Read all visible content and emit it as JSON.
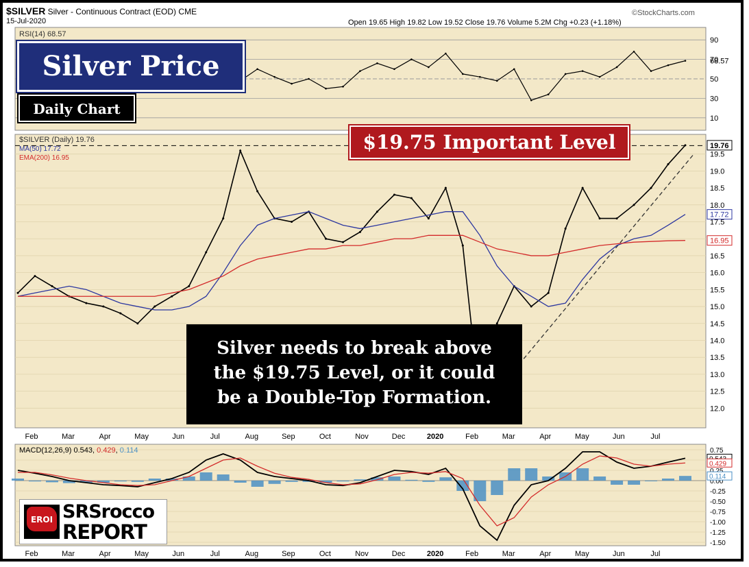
{
  "header": {
    "symbol": "$SILVER",
    "description": "Silver - Continuous Contract (EOD)",
    "exchange": "CME",
    "date": "15-Jul-2020",
    "watermark": "©StockCharts.com",
    "quote": "Open 19.65  High 19.82  Low 19.52  Close 19.76  Volume 5.2M  Chg +0.23 (+1.18%)"
  },
  "callouts": {
    "title": "Silver Price",
    "subtitle": "Daily Chart",
    "level": "$19.75 Important Level",
    "note_lines": [
      "Silver needs to break above",
      "the $19.75 Level, or it could",
      "be a Double-Top Formation."
    ]
  },
  "logo": {
    "badge": "EROI",
    "line1": "SRSrocco",
    "line2": "REPORT"
  },
  "colors": {
    "price": "#000000",
    "ma50": "#2c37a0",
    "ema200": "#d32a2a",
    "rsi_overbought": "#4f7d2f",
    "rsi_oversold": "#9b3a2a",
    "macd_hist": "#4a8fc4",
    "panel_bg": "#f3e8c8",
    "callout_red": "#b0191e",
    "callout_blue": "#1f2e7a"
  },
  "chart_data": [
    {
      "type": "line",
      "panel": "rsi",
      "legend": "RSI(14) 68.57",
      "ticks": [
        90,
        70,
        50,
        30,
        10
      ],
      "last_value_label": "68.57",
      "ylim": [
        0,
        100
      ],
      "x": [
        0,
        10,
        20,
        30,
        40,
        50,
        60,
        70,
        80,
        90,
        100,
        110,
        120,
        130,
        140,
        150,
        160,
        170,
        180,
        190,
        200,
        210,
        220,
        230,
        240,
        250,
        260,
        270,
        280,
        290,
        300,
        310,
        320,
        330,
        340,
        350,
        360,
        370,
        380,
        390
      ],
      "values": [
        50,
        58,
        47,
        52,
        42,
        48,
        38,
        55,
        62,
        60,
        75,
        80,
        55,
        48,
        60,
        52,
        45,
        50,
        40,
        42,
        58,
        66,
        60,
        70,
        62,
        76,
        55,
        52,
        48,
        60,
        28,
        34,
        55,
        58,
        52,
        62,
        78,
        58,
        64,
        68.57
      ]
    },
    {
      "type": "line",
      "panel": "price",
      "legend": [
        "$SILVER (Daily) 19.76",
        "MA(50) 17.72",
        "EMA(200) 16.95"
      ],
      "ylim": [
        11.5,
        20.0
      ],
      "ticks": [
        19.5,
        19.0,
        18.5,
        18.0,
        17.5,
        17.0,
        16.5,
        16.0,
        15.5,
        15.0,
        14.5,
        14.0,
        13.5,
        13.0,
        12.5,
        12.0
      ],
      "value_labels": {
        "close": "19.76",
        "ma50": "17.72",
        "ema200": "16.95"
      },
      "x_labels": [
        "Feb",
        "Mar",
        "Apr",
        "May",
        "Jun",
        "Jul",
        "Aug",
        "Sep",
        "Oct",
        "Nov",
        "Dec",
        "2020",
        "Feb",
        "Mar",
        "Apr",
        "May",
        "Jun",
        "Jul"
      ],
      "important_level": 19.75,
      "x": [
        0,
        10,
        20,
        30,
        40,
        50,
        60,
        70,
        80,
        90,
        100,
        110,
        120,
        130,
        140,
        150,
        160,
        170,
        180,
        190,
        200,
        210,
        220,
        230,
        240,
        250,
        260,
        270,
        280,
        290,
        300,
        310,
        320,
        330,
        340,
        350,
        360,
        370,
        380,
        390
      ],
      "series": [
        {
          "name": "$SILVER (Daily)",
          "values": [
            15.4,
            15.9,
            15.6,
            15.3,
            15.1,
            15.0,
            14.8,
            14.5,
            15.0,
            15.3,
            15.6,
            16.6,
            17.6,
            19.6,
            18.4,
            17.6,
            17.5,
            17.8,
            17.0,
            16.9,
            17.2,
            17.8,
            18.3,
            18.2,
            17.6,
            18.5,
            16.8,
            12.1,
            14.5,
            15.6,
            15.0,
            15.4,
            17.3,
            18.5,
            17.6,
            17.6,
            18.0,
            18.5,
            19.2,
            19.76
          ]
        },
        {
          "name": "MA(50)",
          "values": [
            15.3,
            15.4,
            15.5,
            15.6,
            15.5,
            15.3,
            15.1,
            15.0,
            14.9,
            14.9,
            15.0,
            15.3,
            16.0,
            16.8,
            17.4,
            17.6,
            17.7,
            17.8,
            17.6,
            17.4,
            17.3,
            17.4,
            17.5,
            17.6,
            17.7,
            17.8,
            17.8,
            17.1,
            16.2,
            15.6,
            15.3,
            15.0,
            15.1,
            15.8,
            16.4,
            16.8,
            17.0,
            17.1,
            17.4,
            17.72
          ]
        },
        {
          "name": "EMA(200)",
          "values": [
            15.3,
            15.3,
            15.3,
            15.3,
            15.3,
            15.3,
            15.3,
            15.3,
            15.3,
            15.4,
            15.5,
            15.7,
            15.9,
            16.2,
            16.4,
            16.5,
            16.6,
            16.7,
            16.7,
            16.8,
            16.8,
            16.9,
            17.0,
            17.0,
            17.1,
            17.1,
            17.1,
            16.9,
            16.7,
            16.6,
            16.5,
            16.5,
            16.6,
            16.7,
            16.8,
            16.85,
            16.9,
            16.92,
            16.94,
            16.95
          ]
        }
      ]
    },
    {
      "type": "line",
      "panel": "macd",
      "legend": [
        "MACD(12,26,9)",
        "0.543",
        "0.429",
        "0.114"
      ],
      "ylim": [
        -1.55,
        0.85
      ],
      "ticks": [
        "0.75",
        "0.50",
        "0.25",
        "0.00",
        "-0.25",
        "-0.50",
        "-0.75",
        "-1.00",
        "-1.25",
        "-1.50"
      ],
      "value_labels": {
        "macd": "0.543",
        "signal": "0.429",
        "histogram": "0.114"
      },
      "x_labels": [
        "Feb",
        "Mar",
        "Apr",
        "May",
        "Jun",
        "Jul",
        "Aug",
        "Sep",
        "Oct",
        "Nov",
        "Dec",
        "2020",
        "Feb",
        "Mar",
        "Apr",
        "May",
        "Jun",
        "Jul"
      ],
      "x": [
        0,
        10,
        20,
        30,
        40,
        50,
        60,
        70,
        80,
        90,
        100,
        110,
        120,
        130,
        140,
        150,
        160,
        170,
        180,
        190,
        200,
        210,
        220,
        230,
        240,
        250,
        260,
        270,
        280,
        290,
        300,
        310,
        320,
        330,
        340,
        350,
        360,
        370,
        380,
        390
      ],
      "series": [
        {
          "name": "MACD",
          "values": [
            0.25,
            0.18,
            0.1,
            0.0,
            -0.05,
            -0.1,
            -0.12,
            -0.15,
            -0.05,
            0.05,
            0.2,
            0.5,
            0.65,
            0.5,
            0.2,
            0.1,
            0.05,
            0.0,
            -0.1,
            -0.12,
            -0.05,
            0.1,
            0.25,
            0.22,
            0.15,
            0.3,
            -0.2,
            -1.1,
            -1.45,
            -0.6,
            -0.1,
            0.0,
            0.3,
            0.7,
            0.7,
            0.45,
            0.3,
            0.35,
            0.45,
            0.543
          ]
        },
        {
          "name": "Signal",
          "values": [
            0.2,
            0.2,
            0.14,
            0.06,
            0.0,
            -0.05,
            -0.1,
            -0.12,
            -0.1,
            0.0,
            0.1,
            0.3,
            0.5,
            0.55,
            0.35,
            0.18,
            0.08,
            0.03,
            -0.05,
            -0.1,
            -0.08,
            0.02,
            0.15,
            0.2,
            0.18,
            0.22,
            0.05,
            -0.6,
            -1.1,
            -0.9,
            -0.4,
            -0.1,
            0.1,
            0.4,
            0.6,
            0.55,
            0.4,
            0.35,
            0.4,
            0.429
          ]
        },
        {
          "name": "Histogram",
          "values": [
            0.05,
            -0.02,
            -0.04,
            -0.06,
            -0.05,
            -0.05,
            -0.02,
            -0.03,
            0.05,
            0.05,
            0.1,
            0.2,
            0.15,
            -0.05,
            -0.15,
            -0.08,
            -0.03,
            -0.03,
            -0.05,
            -0.02,
            0.03,
            0.08,
            0.1,
            0.02,
            -0.03,
            0.08,
            -0.25,
            -0.5,
            -0.35,
            0.3,
            0.3,
            0.1,
            0.2,
            0.3,
            0.1,
            -0.1,
            -0.1,
            0.0,
            0.05,
            0.114
          ]
        }
      ]
    }
  ]
}
